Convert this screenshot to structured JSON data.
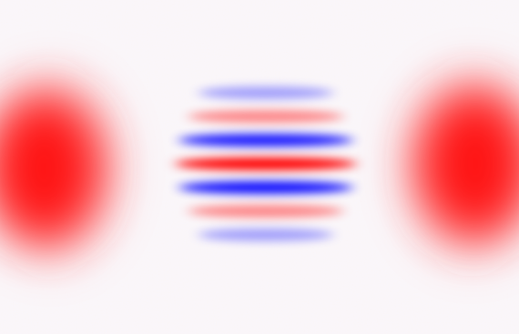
{
  "image": {
    "background_color": "#fbf8fa",
    "positive_color": "#ff0000",
    "negative_color": "#0000ff",
    "noise": true,
    "features": {
      "left_lobe": {
        "sign": "positive"
      },
      "right_lobe": {
        "sign": "positive"
      },
      "center_fringes": {
        "bands": [
          {
            "sign": "negative",
            "strength": 0.35
          },
          {
            "sign": "positive",
            "strength": 0.45
          },
          {
            "sign": "negative",
            "strength": 0.9
          },
          {
            "sign": "positive",
            "strength": 1.0
          },
          {
            "sign": "negative",
            "strength": 0.95
          },
          {
            "sign": "positive",
            "strength": 0.45
          },
          {
            "sign": "negative",
            "strength": 0.35
          }
        ]
      }
    }
  }
}
